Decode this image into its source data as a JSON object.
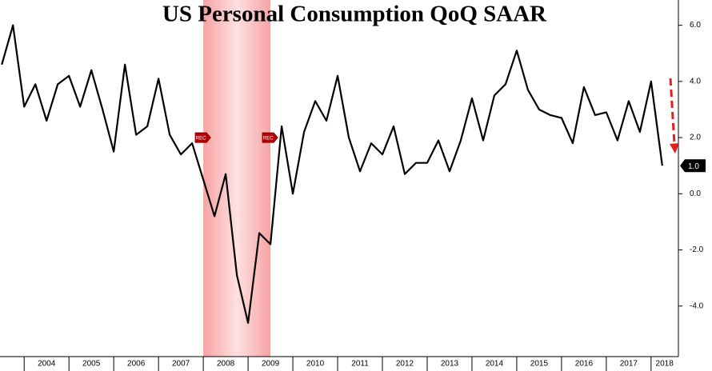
{
  "chart_data": {
    "type": "line",
    "title": "US Personal Consumption QoQ SAAR",
    "annotations": [
      "REC",
      "REC"
    ],
    "recession": [
      2008.0,
      2009.5
    ],
    "x": [
      2003.5,
      2003.75,
      2004.0,
      2004.25,
      2004.5,
      2004.75,
      2005.0,
      2005.25,
      2005.5,
      2005.75,
      2006.0,
      2006.25,
      2006.5,
      2006.75,
      2007.0,
      2007.25,
      2007.5,
      2007.75,
      2008.0,
      2008.25,
      2008.5,
      2008.75,
      2009.0,
      2009.25,
      2009.5,
      2009.75,
      2010.0,
      2010.25,
      2010.5,
      2010.75,
      2011.0,
      2011.25,
      2011.5,
      2011.75,
      2012.0,
      2012.25,
      2012.5,
      2012.75,
      2013.0,
      2013.25,
      2013.5,
      2013.75,
      2014.0,
      2014.25,
      2014.5,
      2014.75,
      2015.0,
      2015.25,
      2015.5,
      2015.75,
      2016.0,
      2016.25,
      2016.5,
      2016.75,
      2017.0,
      2017.25,
      2017.5,
      2017.75,
      2018.0,
      2018.25
    ],
    "series": [
      {
        "name": "US Personal Consumption QoQ SAAR",
        "color": "#000000",
        "values": [
          4.6,
          6.0,
          3.1,
          3.9,
          2.6,
          3.9,
          4.2,
          3.1,
          4.4,
          3.0,
          1.5,
          4.6,
          2.1,
          2.4,
          4.1,
          2.1,
          1.4,
          1.8,
          0.5,
          -0.8,
          0.7,
          -2.9,
          -4.6,
          -1.4,
          -1.8,
          2.4,
          0.0,
          2.2,
          3.3,
          2.6,
          4.2,
          2.0,
          0.8,
          1.8,
          1.4,
          2.4,
          0.7,
          1.1,
          1.1,
          1.9,
          0.8,
          1.9,
          3.4,
          1.9,
          3.5,
          3.9,
          5.1,
          3.7,
          3.0,
          2.8,
          2.7,
          1.8,
          3.8,
          2.8,
          2.9,
          1.9,
          3.3,
          2.2,
          4.0,
          1.0
        ],
        "value_labels": [
          null,
          null,
          null,
          null,
          null,
          null,
          null,
          null,
          null,
          null,
          null,
          null,
          null,
          null,
          null,
          null,
          null,
          null,
          null,
          null,
          null,
          null,
          null,
          null,
          null,
          null,
          null,
          null,
          null,
          null,
          null,
          null,
          null,
          null,
          null,
          null,
          null,
          null,
          null,
          null,
          null,
          null,
          null,
          null,
          null,
          null,
          null,
          null,
          null,
          null,
          null,
          null,
          null,
          null,
          null,
          null,
          null,
          null,
          null,
          "1.0"
        ]
      }
    ],
    "xlim": [
      2003.46,
      2018.61
    ],
    "xticks": [
      {
        "value": 2004.5,
        "label": "2004"
      },
      {
        "value": 2005.5,
        "label": "2005"
      },
      {
        "value": 2006.5,
        "label": "2006"
      },
      {
        "value": 2007.5,
        "label": "2007"
      },
      {
        "value": 2008.5,
        "label": "2008"
      },
      {
        "value": 2009.5,
        "label": "2009"
      },
      {
        "value": 2010.5,
        "label": "2010"
      },
      {
        "value": 2011.5,
        "label": "2011"
      },
      {
        "value": 2012.5,
        "label": "2012"
      },
      {
        "value": 2013.5,
        "label": "2013"
      },
      {
        "value": 2014.5,
        "label": "2014"
      },
      {
        "value": 2015.5,
        "label": "2015"
      },
      {
        "value": 2016.5,
        "label": "2016"
      },
      {
        "value": 2017.5,
        "label": "2017"
      },
      {
        "value": 2018.3,
        "label": "2018"
      }
    ],
    "ylim": [
      -5.8,
      6.9
    ],
    "yticks": [
      {
        "value": 6,
        "label": "6.0"
      },
      {
        "value": 4,
        "label": "4.0"
      },
      {
        "value": 2,
        "label": "2.0"
      },
      {
        "value": 0,
        "label": "0.0"
      },
      {
        "value": -2,
        "label": "-2.0"
      },
      {
        "value": -4,
        "label": "-4.0"
      }
    ],
    "grid": false
  }
}
